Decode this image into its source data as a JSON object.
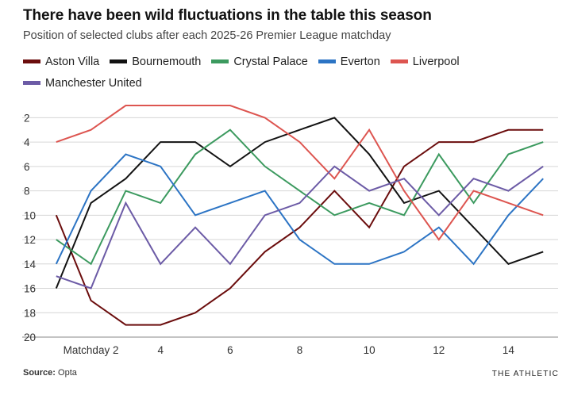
{
  "chart_data": {
    "type": "line",
    "title": "There have been wild fluctuations in the table this season",
    "subtitle": "Position of selected clubs after each 2025-26 Premier League matchday",
    "x": [
      1,
      2,
      3,
      4,
      5,
      6,
      7,
      8,
      9,
      10,
      11,
      12,
      13,
      14,
      15
    ],
    "xlim": [
      0.8,
      15.2
    ],
    "ylim": [
      1,
      20
    ],
    "y_inverted": true,
    "x_ticks": [
      {
        "value": 2,
        "label": "Matchday 2"
      },
      {
        "value": 4,
        "label": "4"
      },
      {
        "value": 6,
        "label": "6"
      },
      {
        "value": 8,
        "label": "8"
      },
      {
        "value": 10,
        "label": "10"
      },
      {
        "value": 12,
        "label": "12"
      },
      {
        "value": 14,
        "label": "14"
      }
    ],
    "y_ticks": [
      {
        "value": 2,
        "label": "2"
      },
      {
        "value": 4,
        "label": "4"
      },
      {
        "value": 6,
        "label": "6"
      },
      {
        "value": 8,
        "label": "8"
      },
      {
        "value": 10,
        "label": "10"
      },
      {
        "value": 12,
        "label": "12"
      },
      {
        "value": 14,
        "label": "14"
      },
      {
        "value": 16,
        "label": "16"
      },
      {
        "value": 18,
        "label": "18"
      },
      {
        "value": 20,
        "label": "20"
      }
    ],
    "series": [
      {
        "name": "Aston Villa",
        "color": "#6b0d0d",
        "values": [
          10,
          17,
          19,
          19,
          18,
          16,
          13,
          11,
          8,
          11,
          6,
          4,
          4,
          3,
          3
        ]
      },
      {
        "name": "Bournemouth",
        "color": "#121212",
        "values": [
          16,
          9,
          7,
          4,
          4,
          6,
          4,
          3,
          2,
          5,
          9,
          8,
          11,
          14,
          13
        ]
      },
      {
        "name": "Crystal Palace",
        "color": "#3c9a5f",
        "values": [
          12,
          14,
          8,
          9,
          5,
          3,
          6,
          8,
          10,
          9,
          10,
          5,
          9,
          5,
          4
        ]
      },
      {
        "name": "Everton",
        "color": "#2c74c4",
        "values": [
          14,
          8,
          5,
          6,
          10,
          9,
          8,
          12,
          14,
          14,
          13,
          11,
          14,
          10,
          7
        ]
      },
      {
        "name": "Liverpool",
        "color": "#dd5550",
        "values": [
          4,
          3,
          1,
          1,
          1,
          1,
          2,
          4,
          7,
          3,
          8,
          12,
          8,
          9,
          10
        ]
      },
      {
        "name": "Manchester United",
        "color": "#6c5ba6",
        "values": [
          15,
          16,
          9,
          14,
          11,
          14,
          10,
          9,
          6,
          8,
          7,
          10,
          7,
          8,
          6
        ]
      }
    ]
  },
  "footer": {
    "source_label": "Source:",
    "source_value": "Opta",
    "brand": "THE ATHLETIC"
  }
}
